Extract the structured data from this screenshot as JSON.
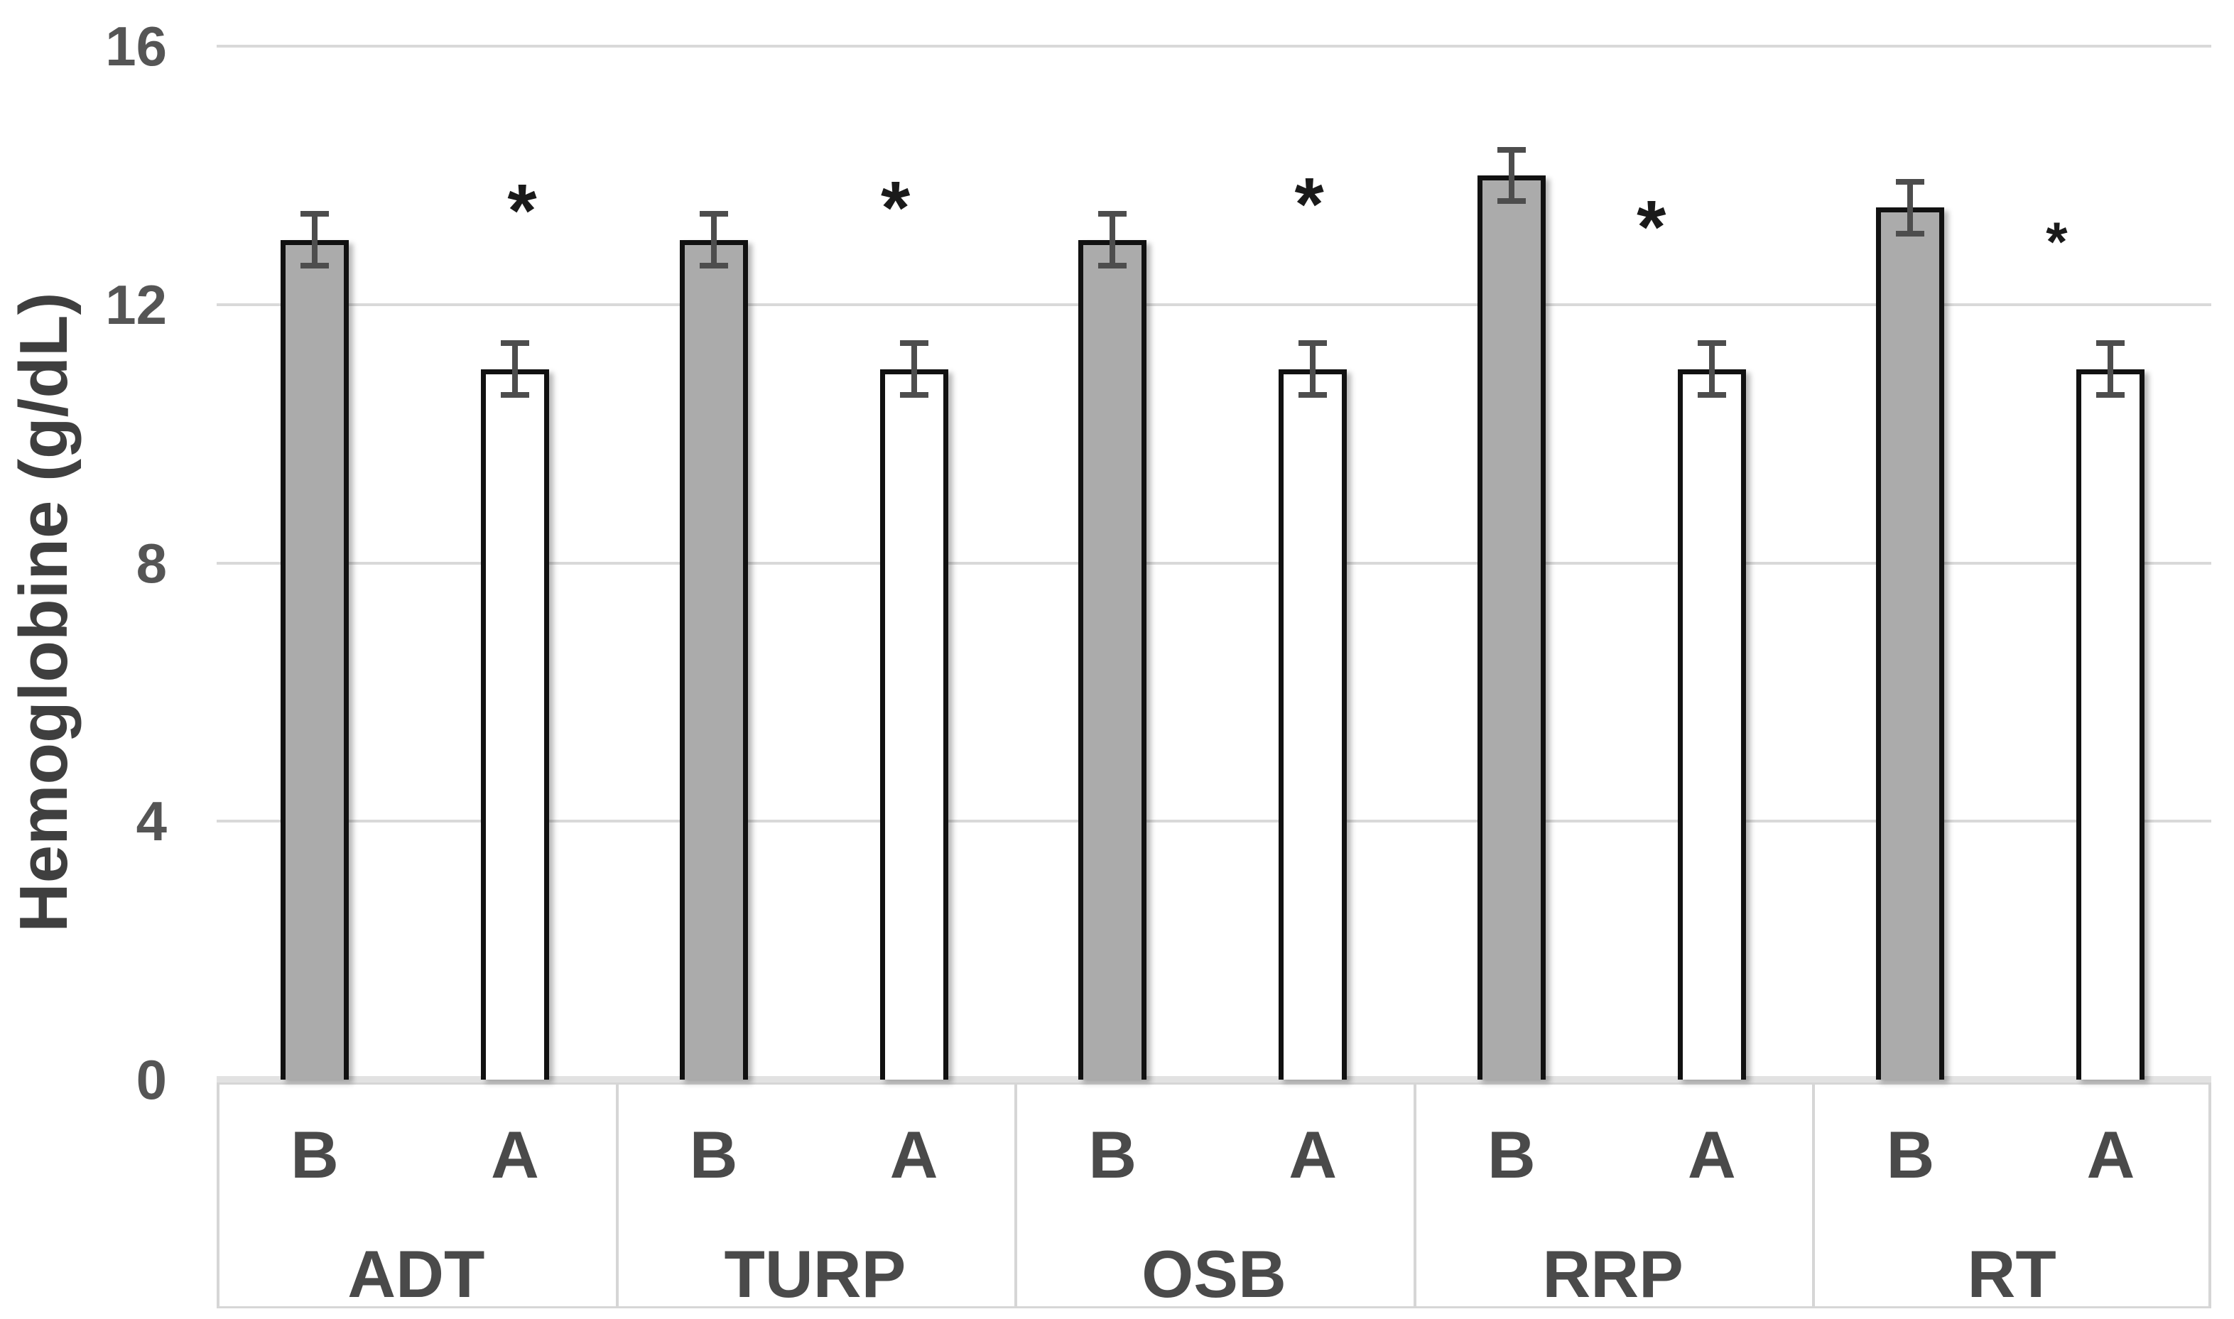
{
  "chart_data": {
    "type": "bar",
    "title": "",
    "ylabel": "Hemoglobine (g/dL)",
    "xlabel": "",
    "ylim": [
      0,
      16
    ],
    "yticks": [
      0,
      4,
      8,
      12,
      16
    ],
    "grid": true,
    "legend": "none",
    "categories": [
      "ADT",
      "TURP",
      "OSB",
      "RRP",
      "RT"
    ],
    "bar_pair_labels": [
      "B",
      "A"
    ],
    "series": [
      {
        "name": "B",
        "fill": "#ABABAB",
        "values": [
          13.0,
          13.0,
          13.0,
          14.0,
          13.5
        ],
        "errors": [
          0.4,
          0.4,
          0.4,
          0.4,
          0.4
        ]
      },
      {
        "name": "A",
        "fill": "#FFFFFF",
        "values": [
          11.0,
          11.0,
          11.0,
          11.0,
          11.0
        ],
        "errors": [
          0.4,
          0.4,
          0.4,
          0.4,
          0.4
        ]
      }
    ],
    "annotations": [
      {
        "text": "*",
        "category": "ADT",
        "series": "A",
        "y": 13.75,
        "dx": 10,
        "small": false
      },
      {
        "text": "*",
        "category": "TURP",
        "series": "A",
        "y": 13.8,
        "dx": -26,
        "small": false
      },
      {
        "text": "*",
        "category": "OSB",
        "series": "A",
        "y": 13.85,
        "dx": -5,
        "small": false
      },
      {
        "text": "*",
        "category": "RRP",
        "series": "A",
        "y": 13.5,
        "dx": -85,
        "small": false
      },
      {
        "text": "*",
        "category": "RT",
        "series": "A",
        "y": 13.2,
        "dx": -76,
        "small": true
      }
    ]
  },
  "colors": {
    "background": "#FFFFFF",
    "bar_border": "#111111",
    "gridline": "#D9D9D9",
    "baseline_band": "#E2E2E2",
    "table_border": "#D6D6D6",
    "tick_text": "#555555",
    "label_text": "#4A4A4A",
    "axis_title_text": "#3F3F3F",
    "error_bar": "#4D4D4D",
    "annotation": "#1A1A1A"
  }
}
